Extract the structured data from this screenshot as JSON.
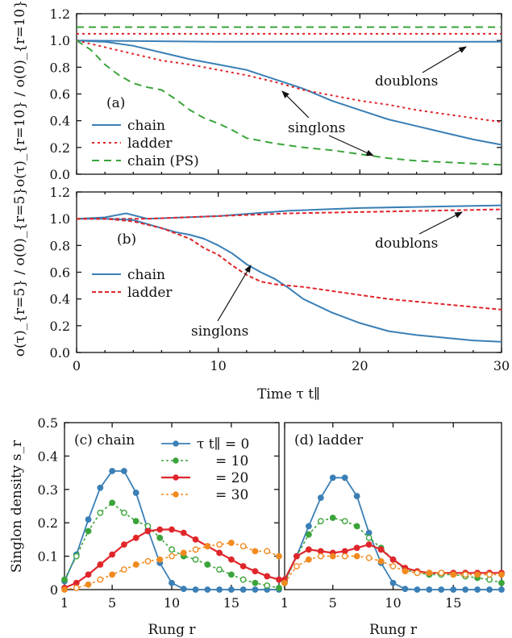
{
  "colors": {
    "chain": "#3a7fb6",
    "ladder": "#e0262b",
    "ps": "#3aa43a",
    "r0": "#3a7fb6",
    "r10": "#3aa43a",
    "r20": "#e0262b",
    "r30": "#f28a1f"
  },
  "chart_data": [
    {
      "type": "line",
      "panel_label": "(a)",
      "ylabel": "o(τ)_{r=10} / o(0)_{r=10}",
      "xlim": [
        0,
        30
      ],
      "ylim": [
        0,
        1.2
      ],
      "xticks": [
        "0",
        "10",
        "20",
        "30"
      ],
      "yticks": [
        "0.0",
        "0.2",
        "0.4",
        "0.6",
        "0.8",
        "1.0",
        "1.2"
      ],
      "legend": [
        "chain",
        "ladder",
        "chain (PS)"
      ],
      "annotations": [
        "doublons",
        "singlons"
      ],
      "series": [
        {
          "name": "chain",
          "kind": "doublons",
          "x": [
            0,
            5,
            10,
            15,
            20,
            25,
            30
          ],
          "y": [
            1.0,
            0.995,
            0.99,
            0.99,
            0.99,
            0.99,
            0.99
          ]
        },
        {
          "name": "ladder",
          "kind": "doublons",
          "x": [
            0,
            30
          ],
          "y": [
            1.05,
            1.05
          ]
        },
        {
          "name": "chain (PS)",
          "kind": "doublons",
          "x": [
            0,
            30
          ],
          "y": [
            1.1,
            1.1
          ]
        },
        {
          "name": "chain",
          "kind": "singlons",
          "x": [
            0,
            2,
            4,
            6,
            8,
            10,
            12,
            14,
            16,
            18,
            20,
            22,
            24,
            26,
            28,
            30
          ],
          "y": [
            1.0,
            0.99,
            0.96,
            0.91,
            0.86,
            0.82,
            0.78,
            0.71,
            0.64,
            0.55,
            0.48,
            0.41,
            0.36,
            0.31,
            0.26,
            0.22
          ]
        },
        {
          "name": "ladder",
          "kind": "singlons",
          "x": [
            0,
            2,
            4,
            6,
            8,
            10,
            12,
            14,
            16,
            18,
            20,
            22,
            24,
            26,
            28,
            30
          ],
          "y": [
            1.0,
            0.95,
            0.9,
            0.85,
            0.82,
            0.78,
            0.74,
            0.69,
            0.63,
            0.59,
            0.55,
            0.52,
            0.48,
            0.45,
            0.42,
            0.39
          ]
        },
        {
          "name": "chain (PS)",
          "kind": "singlons",
          "x": [
            0,
            1,
            2,
            3,
            4,
            5,
            6,
            7,
            8,
            9,
            10,
            11,
            12,
            13,
            14,
            16,
            18,
            20,
            22,
            24,
            26,
            28,
            30
          ],
          "y": [
            1.0,
            0.93,
            0.82,
            0.74,
            0.68,
            0.65,
            0.63,
            0.56,
            0.48,
            0.42,
            0.38,
            0.33,
            0.27,
            0.25,
            0.23,
            0.2,
            0.18,
            0.15,
            0.12,
            0.1,
            0.09,
            0.08,
            0.07
          ]
        }
      ]
    },
    {
      "type": "line",
      "panel_label": "(b)",
      "ylabel": "o(τ)_{r=5} / o(0)_{r=5}",
      "xlabel": "Time τ t∥",
      "xlim": [
        0,
        30
      ],
      "ylim": [
        0,
        1.2
      ],
      "xticks": [
        "0",
        "10",
        "20",
        "30"
      ],
      "yticks": [
        "0.0",
        "0.2",
        "0.4",
        "0.6",
        "0.8",
        "1.0",
        "1.2"
      ],
      "legend": [
        "chain",
        "ladder"
      ],
      "annotations": [
        "doublons",
        "singlons"
      ],
      "series": [
        {
          "name": "chain",
          "kind": "doublons",
          "x": [
            0,
            2,
            3.5,
            5,
            10,
            15,
            20,
            25,
            30
          ],
          "y": [
            1.0,
            1.01,
            1.04,
            1.0,
            1.02,
            1.06,
            1.08,
            1.09,
            1.1
          ]
        },
        {
          "name": "ladder",
          "kind": "doublons",
          "x": [
            0,
            5,
            10,
            15,
            20,
            25,
            30
          ],
          "y": [
            1.0,
            1.0,
            1.02,
            1.04,
            1.05,
            1.06,
            1.07
          ]
        },
        {
          "name": "chain",
          "kind": "singlons",
          "x": [
            0,
            2,
            4,
            6,
            7,
            8,
            9,
            10,
            11,
            12,
            13,
            14,
            15,
            16,
            18,
            20,
            22,
            24,
            26,
            28,
            30
          ],
          "y": [
            1.0,
            1.0,
            0.99,
            0.93,
            0.9,
            0.88,
            0.85,
            0.8,
            0.74,
            0.66,
            0.6,
            0.55,
            0.48,
            0.4,
            0.3,
            0.22,
            0.16,
            0.13,
            0.11,
            0.09,
            0.08
          ]
        },
        {
          "name": "ladder",
          "kind": "singlons",
          "x": [
            0,
            2,
            4,
            6,
            8,
            9,
            10,
            11,
            12,
            13,
            14,
            15,
            16,
            18,
            20,
            22,
            24,
            26,
            28,
            30
          ],
          "y": [
            1.0,
            1.0,
            0.98,
            0.93,
            0.85,
            0.78,
            0.73,
            0.65,
            0.58,
            0.53,
            0.51,
            0.5,
            0.49,
            0.46,
            0.43,
            0.4,
            0.38,
            0.36,
            0.34,
            0.32
          ]
        }
      ]
    },
    {
      "type": "line",
      "panel_label": "(c) chain",
      "ylabel": "Singlon density s_r",
      "xlabel": "Rung r",
      "xlim": [
        1,
        19
      ],
      "ylim": [
        0,
        0.5
      ],
      "xticks": [
        "1",
        "5",
        "10",
        "15"
      ],
      "yticks": [
        "0",
        "0.1",
        "0.2",
        "0.3",
        "0.4",
        "0.5"
      ],
      "legend": [
        "τ t∥ = 0",
        "= 10",
        "= 20",
        "= 30"
      ],
      "x": [
        1,
        2,
        3,
        4,
        5,
        6,
        7,
        8,
        9,
        10,
        11,
        12,
        13,
        14,
        15,
        16,
        17,
        18,
        19
      ],
      "series": [
        {
          "name": "τ t∥ = 0",
          "values": [
            0.025,
            0.105,
            0.21,
            0.305,
            0.355,
            0.355,
            0.29,
            0.18,
            0.08,
            0.02,
            0.002,
            0.0,
            0.0,
            0.0,
            0.0,
            0.0,
            0.0,
            0.0,
            0.0
          ]
        },
        {
          "name": "= 10",
          "values": [
            0.03,
            0.1,
            0.175,
            0.23,
            0.26,
            0.23,
            0.205,
            0.19,
            0.155,
            0.12,
            0.1,
            0.09,
            0.075,
            0.06,
            0.045,
            0.03,
            0.02,
            0.012,
            0.005
          ]
        },
        {
          "name": "= 20",
          "values": [
            0.005,
            0.02,
            0.045,
            0.075,
            0.105,
            0.135,
            0.155,
            0.175,
            0.18,
            0.18,
            0.17,
            0.15,
            0.13,
            0.11,
            0.09,
            0.07,
            0.055,
            0.04,
            0.03
          ]
        },
        {
          "name": "= 30",
          "values": [
            0.0,
            0.005,
            0.015,
            0.03,
            0.045,
            0.06,
            0.075,
            0.085,
            0.09,
            0.1,
            0.11,
            0.12,
            0.13,
            0.135,
            0.14,
            0.13,
            0.115,
            0.115,
            0.1
          ]
        }
      ]
    },
    {
      "type": "line",
      "panel_label": "(d) ladder",
      "xlabel": "Rung r",
      "xlim": [
        1,
        19
      ],
      "ylim": [
        0,
        0.5
      ],
      "xticks": [
        "1",
        "5",
        "10",
        "15"
      ],
      "x": [
        1,
        2,
        3,
        4,
        5,
        6,
        7,
        8,
        9,
        10,
        11,
        12,
        13,
        14,
        15,
        16,
        17,
        18,
        19
      ],
      "series": [
        {
          "name": "τ t∥ = 0",
          "values": [
            0.025,
            0.1,
            0.19,
            0.275,
            0.335,
            0.335,
            0.28,
            0.17,
            0.08,
            0.02,
            0.002,
            0.0,
            0.0,
            0.0,
            0.0,
            0.0,
            0.0,
            0.0,
            0.0
          ]
        },
        {
          "name": "= 10",
          "values": [
            0.02,
            0.1,
            0.165,
            0.205,
            0.215,
            0.205,
            0.19,
            0.155,
            0.125,
            0.09,
            0.06,
            0.05,
            0.045,
            0.045,
            0.045,
            0.04,
            0.035,
            0.03,
            0.02
          ]
        },
        {
          "name": "= 20",
          "values": [
            0.03,
            0.1,
            0.12,
            0.115,
            0.11,
            0.115,
            0.125,
            0.135,
            0.12,
            0.09,
            0.065,
            0.055,
            0.05,
            0.05,
            0.05,
            0.05,
            0.05,
            0.05,
            0.05
          ]
        },
        {
          "name": "= 30",
          "values": [
            0.02,
            0.07,
            0.09,
            0.1,
            0.1,
            0.1,
            0.1,
            0.095,
            0.085,
            0.07,
            0.055,
            0.05,
            0.05,
            0.05,
            0.045,
            0.045,
            0.045,
            0.045,
            0.045
          ]
        }
      ]
    }
  ]
}
